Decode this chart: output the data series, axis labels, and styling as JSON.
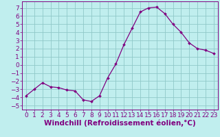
{
  "x": [
    0,
    1,
    2,
    3,
    4,
    5,
    6,
    7,
    8,
    9,
    10,
    11,
    12,
    13,
    14,
    15,
    16,
    17,
    18,
    19,
    20,
    21,
    22,
    23
  ],
  "y": [
    -3.8,
    -3.0,
    -2.2,
    -2.7,
    -2.8,
    -3.1,
    -3.2,
    -4.3,
    -4.5,
    -3.8,
    -1.6,
    0.1,
    2.5,
    4.5,
    6.5,
    7.0,
    7.1,
    6.3,
    5.0,
    4.0,
    2.7,
    2.0,
    1.8,
    1.4
  ],
  "line_color": "#800080",
  "marker_color": "#800080",
  "bg_color": "#c0eeee",
  "grid_color": "#90c8c8",
  "xlabel": "Windchill (Refroidissement éolien,°C)",
  "xticks": [
    0,
    1,
    2,
    3,
    4,
    5,
    6,
    7,
    8,
    9,
    10,
    11,
    12,
    13,
    14,
    15,
    16,
    17,
    18,
    19,
    20,
    21,
    22,
    23
  ],
  "yticks": [
    -5,
    -4,
    -3,
    -2,
    -1,
    0,
    1,
    2,
    3,
    4,
    5,
    6,
    7
  ],
  "ylim": [
    -5.5,
    7.8
  ],
  "xlim": [
    -0.5,
    23.5
  ],
  "label_color": "#800080",
  "tick_fontsize": 6.5,
  "xlabel_fontsize": 7.5
}
